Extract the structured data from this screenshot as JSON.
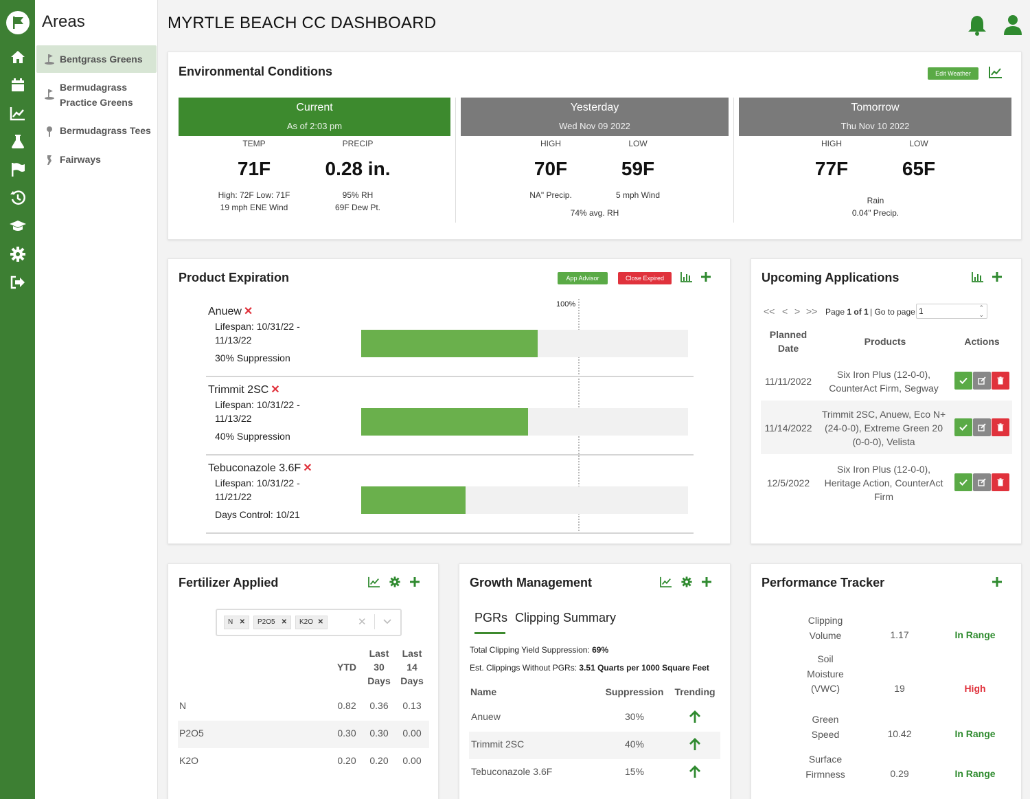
{
  "app": {
    "title": "MYRTLE BEACH CC DASHBOARD"
  },
  "areas": {
    "title": "Areas",
    "items": [
      {
        "label": "Bentgrass Greens",
        "icon": "golf-flag-icon",
        "active": true
      },
      {
        "label": "Bermudagrass Practice Greens",
        "line1": "Bermudagrass",
        "line2": "Practice Greens",
        "icon": "golf-flag-icon"
      },
      {
        "label": "Bermudagrass Tees",
        "icon": "golf-tee-icon"
      },
      {
        "label": "Fairways",
        "icon": "fairway-icon"
      }
    ]
  },
  "rail": [
    "home-icon",
    "calendar-icon",
    "chart-line-icon",
    "flask-icon",
    "flag-icon",
    "history-icon",
    "graduation-cap-icon",
    "gear-icon",
    "sign-out-icon"
  ],
  "env": {
    "title": "Environmental Conditions",
    "edit_weather": "Edit Weather",
    "current": {
      "title": "Current",
      "subtitle": "As of 2:03 pm",
      "label1": "TEMP",
      "label2": "PRECIP",
      "value1": "71F",
      "value2": "0.28 in.",
      "note1a": "High: 72F Low: 71F",
      "note1b": "19 mph ENE Wind",
      "note2a": "95% RH",
      "note2b": "69F Dew Pt."
    },
    "yesterday": {
      "title": "Yesterday",
      "subtitle": "Wed Nov 09 2022",
      "label1": "HIGH",
      "label2": "LOW",
      "value1": "70F",
      "value2": "59F",
      "note1": "NA\" Precip.",
      "note2": "5 mph Wind",
      "note3": "74% avg. RH"
    },
    "tomorrow": {
      "title": "Tomorrow",
      "subtitle": "Thu Nov 10 2022",
      "label1": "HIGH",
      "label2": "LOW",
      "value1": "77F",
      "value2": "65F",
      "note1": "Rain",
      "note2": "0.04\" Precip."
    },
    "colors": {
      "current": "#3d8a2e",
      "other": "#7a7a7a"
    }
  },
  "product": {
    "title": "Product Expiration",
    "app_advisor": "App Advisor",
    "close_expired": "Close Expired",
    "marker_label": "100%",
    "items": [
      {
        "name": "Anuew",
        "lifespan1": "Lifespan: 10/31/22 -",
        "lifespan2": "11/13/22",
        "metric": "30% Suppression",
        "progress": 0.54
      },
      {
        "name": "Trimmit 2SC",
        "lifespan1": "Lifespan: 10/31/22 -",
        "lifespan2": "11/13/22",
        "metric": "40% Suppression",
        "progress": 0.51
      },
      {
        "name": "Tebuconazole 3.6F",
        "lifespan1": "Lifespan: 10/31/22 -",
        "lifespan2": "11/21/22",
        "metric": "Days Control: 10/21",
        "progress": 0.32
      }
    ],
    "remove_symbol": "✕"
  },
  "upcoming": {
    "title": "Upcoming Applications",
    "pager": {
      "first": "<<",
      "prev": "<",
      "next": ">",
      "last": ">>",
      "page_text": "Page ",
      "page": "1",
      "of": " of ",
      "total": "1",
      "goto": "| Go to page:",
      "goto_value": "1"
    },
    "headers": {
      "date1": "Planned",
      "date2": "Date",
      "products": "Products",
      "actions": "Actions"
    },
    "rows": [
      {
        "date": "11/11/2022",
        "p1": "Six Iron Plus (12-0-0),",
        "p2": "CounterAct Firm, Segway",
        "p3": ""
      },
      {
        "date": "11/14/2022",
        "p1": "Trimmit 2SC, Anuew, Eco N+",
        "p2": "(24-0-0), Extreme Green 20",
        "p3": "(0-0-0), Velista"
      },
      {
        "date": "12/5/2022",
        "p1": "Six Iron Plus (12-0-0),",
        "p2": "Heritage Action, CounterAct",
        "p3": "Firm"
      }
    ]
  },
  "fert": {
    "title": "Fertilizer Applied",
    "tags": [
      "N",
      "P2O5",
      "K2O"
    ],
    "headers": {
      "ytd": "YTD",
      "l30a": "Last",
      "l30b": "30",
      "l30c": "Days",
      "l14a": "Last",
      "l14b": "14",
      "l14c": "Days"
    },
    "rows": [
      {
        "name": "N",
        "ytd": "0.82",
        "l30": "0.36",
        "l14": "0.13"
      },
      {
        "name": "P2O5",
        "ytd": "0.30",
        "l30": "0.30",
        "l14": "0.00"
      },
      {
        "name": "K2O",
        "ytd": "0.20",
        "l30": "0.20",
        "l14": "0.00"
      }
    ]
  },
  "growth": {
    "title": "Growth Management",
    "tab1": "PGRs",
    "tab2": "Clipping Summary",
    "line1_label": "Total Clipping Yield Suppression: ",
    "line1_value": "69%",
    "line2_label": "Est. Clippings Without PGRs: ",
    "line2_value": "3.51 Quarts per 1000 Square Feet",
    "headers": {
      "name": "Name",
      "supp": "Suppression",
      "trend": "Trending"
    },
    "rows": [
      {
        "name": "Anuew",
        "supp": "30%"
      },
      {
        "name": "Trimmit 2SC",
        "supp": "40%"
      },
      {
        "name": "Tebuconazole 3.6F",
        "supp": "15%"
      }
    ]
  },
  "perf": {
    "title": "Performance Tracker",
    "rows": [
      {
        "l1": "Clipping",
        "l2": "Volume",
        "l3": "",
        "value": "1.17",
        "status": "In Range",
        "color": "#2e8b2e"
      },
      {
        "l1": "Soil",
        "l2": "Moisture",
        "l3": "(VWC)",
        "value": "19",
        "status": "High",
        "color": "#e0323c"
      },
      {
        "l1": "Green",
        "l2": "Speed",
        "l3": "",
        "value": "10.42",
        "status": "In Range",
        "color": "#2e8b2e"
      },
      {
        "l1": "Surface",
        "l2": "Firmness",
        "l3": "",
        "value": "0.29",
        "status": "In Range",
        "color": "#2e8b2e"
      }
    ]
  }
}
